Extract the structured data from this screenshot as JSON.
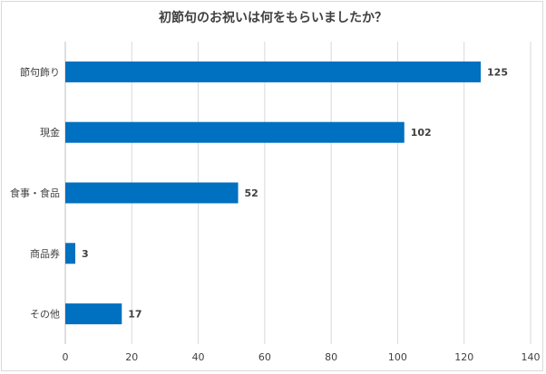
{
  "chart_data": {
    "type": "bar",
    "orientation": "horizontal",
    "title": "初節句のお祝いは何をもらいましたか？",
    "categories": [
      "節句飾り",
      "現金",
      "食事・食品",
      "商品券",
      "その他"
    ],
    "values": [
      125,
      102,
      52,
      3,
      17
    ],
    "xlim": [
      0,
      140
    ],
    "ticks": [
      0,
      20,
      40,
      60,
      80,
      100,
      120,
      140
    ],
    "xlabel": "",
    "ylabel": "",
    "grid": true,
    "legend": "none",
    "bar_color": "#0070C0",
    "grid_color": "#d9d9d9"
  }
}
